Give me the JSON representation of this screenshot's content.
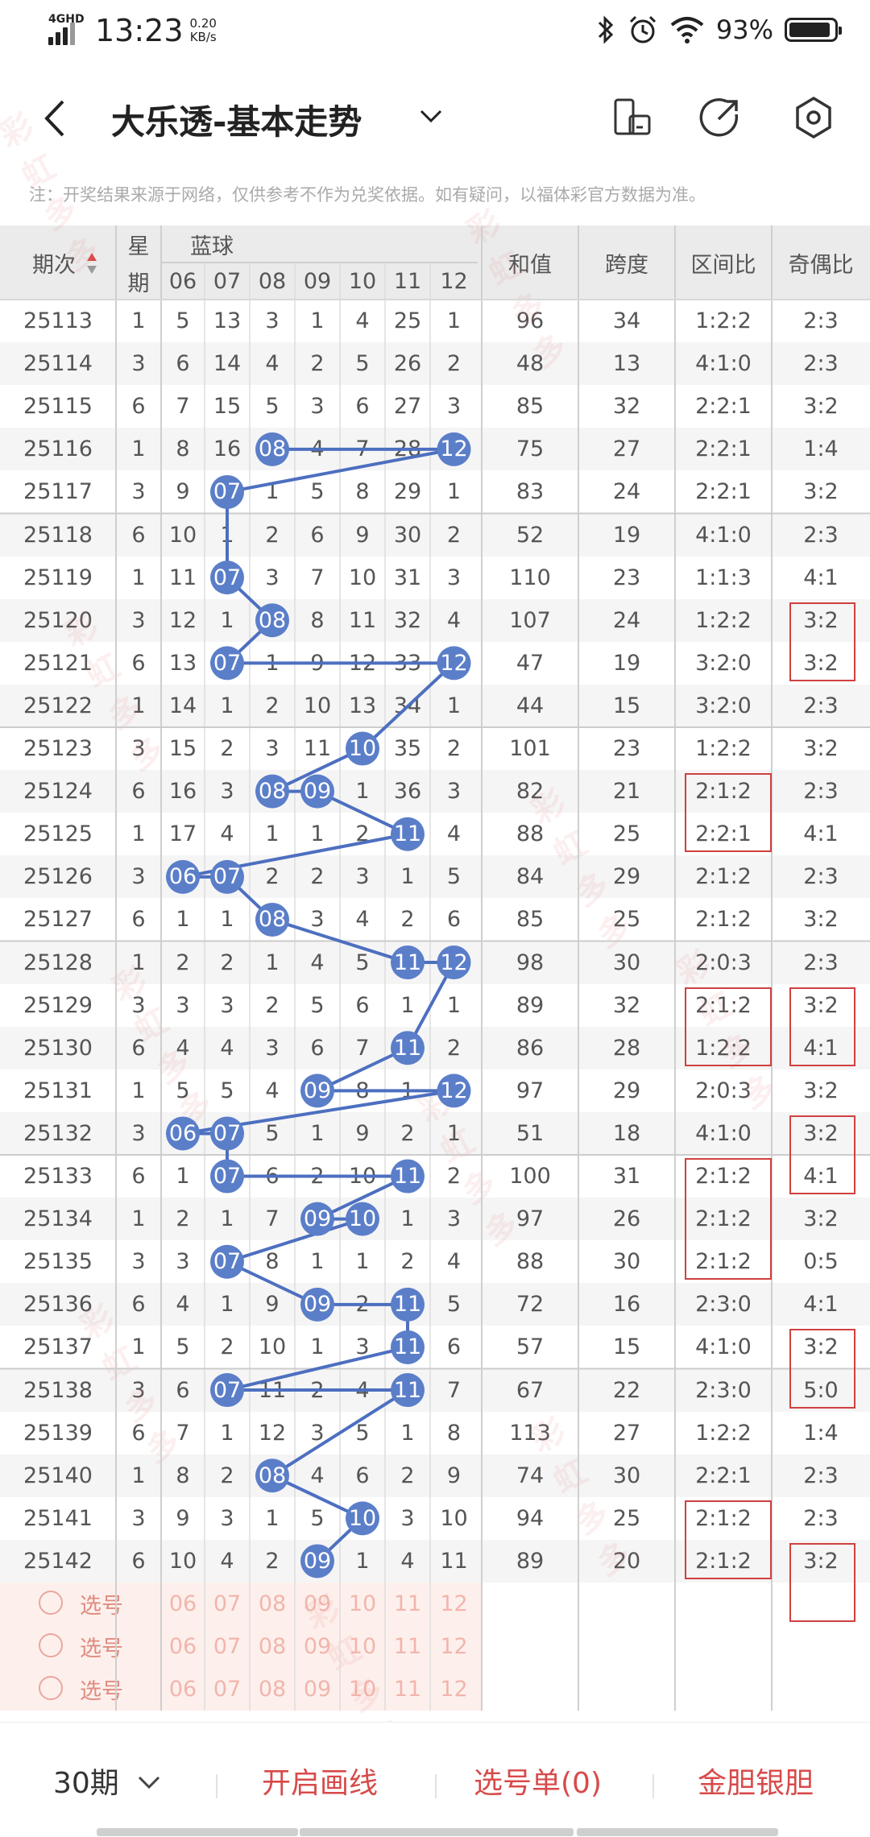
{
  "status_bar": {
    "network": "4GHD",
    "time": "13:23",
    "speed_value": "0.20",
    "speed_unit": "KB/s",
    "battery_pct": "93%",
    "battery_level": 0.93
  },
  "app_bar": {
    "title": "大乐透-基本走势"
  },
  "notice": "注：开奖结果来源于网络，仅供参考不作为兑奖依据。如有疑问，以福体彩官方数据为准。",
  "table": {
    "headers": {
      "period": "期次",
      "week": [
        "星",
        "期"
      ],
      "blue": "蓝球",
      "sum": "和值",
      "span": "跨度",
      "zone": "区间比",
      "odd_even": "奇偶比"
    },
    "blue_columns": [
      "06",
      "07",
      "08",
      "09",
      "10",
      "11",
      "12"
    ],
    "rows": [
      {
        "period": "25113",
        "week": "1",
        "cells": [
          "5",
          "13",
          "3",
          "1",
          "4",
          "25",
          "1"
        ],
        "hits": [],
        "sum": "96",
        "span": "34",
        "zone": "1:2:2",
        "oe": "2:3"
      },
      {
        "period": "25114",
        "week": "3",
        "cells": [
          "6",
          "14",
          "4",
          "2",
          "5",
          "26",
          "2"
        ],
        "hits": [],
        "sum": "48",
        "span": "13",
        "zone": "4:1:0",
        "oe": "2:3"
      },
      {
        "period": "25115",
        "week": "6",
        "cells": [
          "7",
          "15",
          "5",
          "3",
          "6",
          "27",
          "3"
        ],
        "hits": [],
        "sum": "85",
        "span": "32",
        "zone": "2:2:1",
        "oe": "3:2"
      },
      {
        "period": "25116",
        "week": "1",
        "cells": [
          "8",
          "16",
          "08",
          "4",
          "7",
          "28",
          "12"
        ],
        "hits": [
          2,
          6
        ],
        "sum": "75",
        "span": "27",
        "zone": "2:2:1",
        "oe": "1:4"
      },
      {
        "period": "25117",
        "week": "3",
        "cells": [
          "9",
          "07",
          "1",
          "5",
          "8",
          "29",
          "1"
        ],
        "hits": [
          1
        ],
        "sum": "83",
        "span": "24",
        "zone": "2:2:1",
        "oe": "3:2"
      },
      {
        "period": "25118",
        "week": "6",
        "cells": [
          "10",
          "1",
          "2",
          "6",
          "9",
          "30",
          "2"
        ],
        "hits": [],
        "sum": "52",
        "span": "19",
        "zone": "4:1:0",
        "oe": "2:3"
      },
      {
        "period": "25119",
        "week": "1",
        "cells": [
          "11",
          "07",
          "3",
          "7",
          "10",
          "31",
          "3"
        ],
        "hits": [
          1
        ],
        "sum": "110",
        "span": "23",
        "zone": "1:1:3",
        "oe": "4:1"
      },
      {
        "period": "25120",
        "week": "3",
        "cells": [
          "12",
          "1",
          "08",
          "8",
          "11",
          "32",
          "4"
        ],
        "hits": [
          2
        ],
        "sum": "107",
        "span": "24",
        "zone": "1:2:2",
        "oe": "3:2"
      },
      {
        "period": "25121",
        "week": "6",
        "cells": [
          "13",
          "07",
          "1",
          "9",
          "12",
          "33",
          "12"
        ],
        "hits": [
          1,
          6
        ],
        "sum": "47",
        "span": "19",
        "zone": "3:2:0",
        "oe": "3:2"
      },
      {
        "period": "25122",
        "week": "1",
        "cells": [
          "14",
          "1",
          "2",
          "10",
          "13",
          "34",
          "1"
        ],
        "hits": [],
        "sum": "44",
        "span": "15",
        "zone": "3:2:0",
        "oe": "2:3"
      },
      {
        "period": "25123",
        "week": "3",
        "cells": [
          "15",
          "2",
          "3",
          "11",
          "10",
          "35",
          "2"
        ],
        "hits": [
          4
        ],
        "sum": "101",
        "span": "23",
        "zone": "1:2:2",
        "oe": "3:2"
      },
      {
        "period": "25124",
        "week": "6",
        "cells": [
          "16",
          "3",
          "08",
          "09",
          "1",
          "36",
          "3"
        ],
        "hits": [
          2,
          3
        ],
        "sum": "82",
        "span": "21",
        "zone": "2:1:2",
        "oe": "2:3"
      },
      {
        "period": "25125",
        "week": "1",
        "cells": [
          "17",
          "4",
          "1",
          "1",
          "2",
          "11",
          "4"
        ],
        "hits": [
          5
        ],
        "sum": "88",
        "span": "25",
        "zone": "2:2:1",
        "oe": "4:1"
      },
      {
        "period": "25126",
        "week": "3",
        "cells": [
          "06",
          "07",
          "2",
          "2",
          "3",
          "1",
          "5"
        ],
        "hits": [
          0,
          1
        ],
        "sum": "84",
        "span": "29",
        "zone": "2:1:2",
        "oe": "2:3"
      },
      {
        "period": "25127",
        "week": "6",
        "cells": [
          "1",
          "1",
          "08",
          "3",
          "4",
          "2",
          "6"
        ],
        "hits": [
          2
        ],
        "sum": "85",
        "span": "25",
        "zone": "2:1:2",
        "oe": "3:2"
      },
      {
        "period": "25128",
        "week": "1",
        "cells": [
          "2",
          "2",
          "1",
          "4",
          "5",
          "11",
          "12"
        ],
        "hits": [
          5,
          6
        ],
        "sum": "98",
        "span": "30",
        "zone": "2:0:3",
        "oe": "2:3"
      },
      {
        "period": "25129",
        "week": "3",
        "cells": [
          "3",
          "3",
          "2",
          "5",
          "6",
          "1",
          "1"
        ],
        "hits": [],
        "sum": "89",
        "span": "32",
        "zone": "2:1:2",
        "oe": "3:2"
      },
      {
        "period": "25130",
        "week": "6",
        "cells": [
          "4",
          "4",
          "3",
          "6",
          "7",
          "11",
          "2"
        ],
        "hits": [
          5
        ],
        "sum": "86",
        "span": "28",
        "zone": "1:2:2",
        "oe": "4:1"
      },
      {
        "period": "25131",
        "week": "1",
        "cells": [
          "5",
          "5",
          "4",
          "09",
          "8",
          "1",
          "12"
        ],
        "hits": [
          3,
          6
        ],
        "sum": "97",
        "span": "29",
        "zone": "2:0:3",
        "oe": "3:2"
      },
      {
        "period": "25132",
        "week": "3",
        "cells": [
          "06",
          "07",
          "5",
          "1",
          "9",
          "2",
          "1"
        ],
        "hits": [
          0,
          1
        ],
        "sum": "51",
        "span": "18",
        "zone": "4:1:0",
        "oe": "3:2"
      },
      {
        "period": "25133",
        "week": "6",
        "cells": [
          "1",
          "07",
          "6",
          "2",
          "10",
          "11",
          "2"
        ],
        "hits": [
          1,
          5
        ],
        "sum": "100",
        "span": "31",
        "zone": "2:1:2",
        "oe": "4:1"
      },
      {
        "period": "25134",
        "week": "1",
        "cells": [
          "2",
          "1",
          "7",
          "09",
          "10",
          "1",
          "3"
        ],
        "hits": [
          3,
          4
        ],
        "sum": "97",
        "span": "26",
        "zone": "2:1:2",
        "oe": "3:2"
      },
      {
        "period": "25135",
        "week": "3",
        "cells": [
          "3",
          "07",
          "8",
          "1",
          "1",
          "2",
          "4"
        ],
        "hits": [
          1
        ],
        "sum": "88",
        "span": "30",
        "zone": "2:1:2",
        "oe": "0:5"
      },
      {
        "period": "25136",
        "week": "6",
        "cells": [
          "4",
          "1",
          "9",
          "09",
          "2",
          "11",
          "5"
        ],
        "hits": [
          3,
          5
        ],
        "sum": "72",
        "span": "16",
        "zone": "2:3:0",
        "oe": "4:1"
      },
      {
        "period": "25137",
        "week": "1",
        "cells": [
          "5",
          "2",
          "10",
          "1",
          "3",
          "11",
          "6"
        ],
        "hits": [
          5
        ],
        "sum": "57",
        "span": "15",
        "zone": "4:1:0",
        "oe": "3:2"
      },
      {
        "period": "25138",
        "week": "3",
        "cells": [
          "6",
          "07",
          "11",
          "2",
          "4",
          "11",
          "7"
        ],
        "hits": [
          1,
          5
        ],
        "sum": "67",
        "span": "22",
        "zone": "2:3:0",
        "oe": "5:0"
      },
      {
        "period": "25139",
        "week": "6",
        "cells": [
          "7",
          "1",
          "12",
          "3",
          "5",
          "1",
          "8"
        ],
        "hits": [],
        "sum": "113",
        "span": "27",
        "zone": "1:2:2",
        "oe": "1:4"
      },
      {
        "period": "25140",
        "week": "1",
        "cells": [
          "8",
          "2",
          "08",
          "4",
          "6",
          "2",
          "9"
        ],
        "hits": [
          2
        ],
        "sum": "74",
        "span": "30",
        "zone": "2:2:1",
        "oe": "2:3"
      },
      {
        "period": "25141",
        "week": "3",
        "cells": [
          "9",
          "3",
          "1",
          "5",
          "10",
          "3",
          "10"
        ],
        "hits": [
          4
        ],
        "sum": "94",
        "span": "25",
        "zone": "2:1:2",
        "oe": "2:3"
      },
      {
        "period": "25142",
        "week": "6",
        "cells": [
          "10",
          "4",
          "2",
          "09",
          "1",
          "4",
          "11"
        ],
        "hits": [
          3
        ],
        "sum": "89",
        "span": "20",
        "zone": "2:1:2",
        "oe": "3:2"
      }
    ],
    "pick_label": "选号",
    "pick_rows": 3
  },
  "bottom_bar": {
    "periods": "30期",
    "draw_line": "开启画线",
    "pick_list": "选号单(0)",
    "golden": "金胆银胆"
  },
  "watermark": "彩虹多多",
  "colors": {
    "ball": "#5b7ec9",
    "line": "#4d6fc0",
    "accent": "#d84a4a",
    "box": "#d04040",
    "pick_bg": "#fdf0ec",
    "header_bg": "#ebebeb"
  }
}
